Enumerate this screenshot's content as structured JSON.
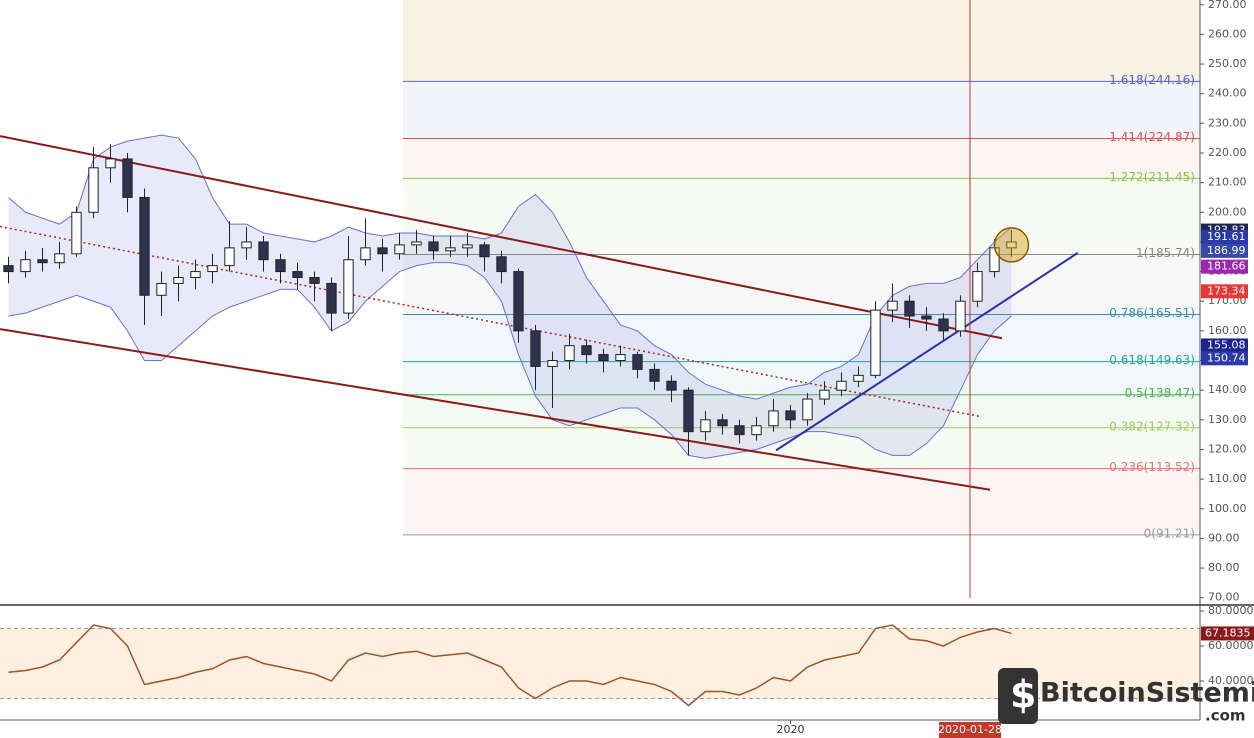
{
  "chart_data": {
    "type": "candlestick",
    "xlim": [
      -0.5,
      70.09
    ],
    "ylim": [
      69.9,
      271.6
    ],
    "yticks": [
      {
        "value": 270,
        "label": "270.00"
      },
      {
        "value": 260,
        "label": "260.00"
      },
      {
        "value": 250,
        "label": "250.00"
      },
      {
        "value": 240,
        "label": "240.00"
      },
      {
        "value": 230,
        "label": "230.00"
      },
      {
        "value": 220,
        "label": "220.00"
      },
      {
        "value": 210,
        "label": "210.00"
      },
      {
        "value": 200,
        "label": "200.00"
      },
      {
        "value": 190,
        "label": "190.00"
      },
      {
        "value": 180,
        "label": "180.00"
      },
      {
        "value": 170,
        "label": "170.00"
      },
      {
        "value": 160,
        "label": "160.00"
      },
      {
        "value": 150,
        "label": "150.00"
      },
      {
        "value": 140,
        "label": "140.00"
      },
      {
        "value": 130,
        "label": "130.00"
      },
      {
        "value": 120,
        "label": "120.00"
      },
      {
        "value": 110,
        "label": "110.00"
      },
      {
        "value": 100,
        "label": "100.00"
      },
      {
        "value": 90,
        "label": "90.00"
      },
      {
        "value": 80,
        "label": "80.00"
      },
      {
        "value": 70,
        "label": "70.00"
      }
    ],
    "xticks": [
      {
        "value": 46,
        "label": "2020"
      }
    ],
    "crosshair": {
      "value": 56.56,
      "label": "2020-01-28",
      "color": "#c0392b"
    },
    "up_color": "#ffffff",
    "down_color": "#2f3350",
    "candles": [
      [
        182,
        185,
        176,
        180
      ],
      [
        180,
        187,
        178,
        184
      ],
      [
        184,
        188,
        180,
        183
      ],
      [
        183,
        190,
        181,
        186
      ],
      [
        186,
        202,
        185,
        200
      ],
      [
        200,
        222,
        198,
        215
      ],
      [
        215,
        223,
        210,
        218
      ],
      [
        218,
        220,
        200,
        205
      ],
      [
        205,
        208,
        162,
        172
      ],
      [
        172,
        180,
        165,
        176
      ],
      [
        176,
        182,
        170,
        178
      ],
      [
        178,
        184,
        174,
        180
      ],
      [
        180,
        186,
        176,
        182
      ],
      [
        182,
        197,
        180,
        188
      ],
      [
        188,
        195,
        184,
        190
      ],
      [
        190,
        192,
        180,
        184
      ],
      [
        184,
        186,
        176,
        180
      ],
      [
        180,
        183,
        174,
        178
      ],
      [
        178,
        180,
        170,
        176
      ],
      [
        176,
        178,
        160,
        166
      ],
      [
        166,
        192,
        164,
        184
      ],
      [
        184,
        198,
        182,
        188
      ],
      [
        188,
        191,
        180,
        186
      ],
      [
        186,
        193,
        184,
        189
      ],
      [
        189,
        194,
        186,
        190
      ],
      [
        190,
        192,
        184,
        187
      ],
      [
        187,
        192,
        185,
        188
      ],
      [
        188,
        193,
        185,
        189
      ],
      [
        189,
        190,
        180,
        185
      ],
      [
        185,
        187,
        176,
        180
      ],
      [
        180,
        181,
        156,
        160
      ],
      [
        160,
        162,
        140,
        148
      ],
      [
        148,
        153,
        134,
        150
      ],
      [
        150,
        159,
        147,
        155
      ],
      [
        155,
        157,
        149,
        152
      ],
      [
        152,
        154,
        146,
        150
      ],
      [
        150,
        155,
        148,
        152
      ],
      [
        152,
        153,
        144,
        147
      ],
      [
        147,
        149,
        140,
        143
      ],
      [
        143,
        145,
        136,
        140
      ],
      [
        140,
        141,
        118,
        126
      ],
      [
        126,
        133,
        123,
        130
      ],
      [
        130,
        132,
        125,
        128
      ],
      [
        128,
        130,
        122,
        125
      ],
      [
        125,
        131,
        123,
        128
      ],
      [
        128,
        137,
        126,
        133
      ],
      [
        133,
        135,
        127,
        130
      ],
      [
        130,
        139,
        128,
        137
      ],
      [
        137,
        143,
        135,
        140
      ],
      [
        140,
        146,
        138,
        143
      ],
      [
        143,
        148,
        141,
        145
      ],
      [
        145,
        170,
        144,
        167
      ],
      [
        167,
        176,
        163,
        170
      ],
      [
        170,
        172,
        161,
        165
      ],
      [
        165,
        168,
        160,
        164
      ],
      [
        164,
        166,
        157,
        160
      ],
      [
        160,
        172,
        158,
        170
      ],
      [
        170,
        183,
        168,
        180
      ],
      [
        180,
        191,
        178,
        188
      ],
      [
        188,
        194,
        185,
        190
      ]
    ],
    "bb_upper": [
      205,
      200,
      198,
      196,
      200,
      218,
      222,
      224,
      225,
      226,
      225,
      218,
      205,
      196,
      196,
      193,
      192,
      191,
      190,
      192,
      195,
      193,
      192,
      193,
      193,
      192,
      192,
      192,
      191,
      193,
      202,
      206,
      200,
      190,
      178,
      170,
      162,
      160,
      155,
      152,
      146,
      142,
      140,
      138,
      137,
      139,
      141,
      142,
      146,
      148,
      152,
      165,
      172,
      175,
      176,
      176,
      178,
      184,
      190,
      195
    ],
    "bb_lower": [
      165,
      166,
      168,
      170,
      172,
      170,
      168,
      160,
      150,
      150,
      155,
      160,
      165,
      168,
      170,
      172,
      174,
      174,
      168,
      160,
      163,
      170,
      175,
      180,
      182,
      183,
      183,
      182,
      178,
      170,
      152,
      138,
      130,
      128,
      130,
      132,
      134,
      134,
      130,
      125,
      118,
      117,
      118,
      119,
      120,
      122,
      124,
      126,
      126,
      125,
      124,
      120,
      118,
      118,
      122,
      128,
      140,
      152,
      160,
      165
    ],
    "band_color": "#6b6fd6",
    "trend_lines": [
      {
        "from": [
          -0.5,
          225.7
        ],
        "to": [
          58.44,
          157.5
        ],
        "color": "#8b1a1a",
        "style": "solid"
      },
      {
        "from": [
          -0.5,
          160.6
        ],
        "to": [
          57.74,
          106.4
        ],
        "color": "#8b1a1a",
        "style": "solid"
      },
      {
        "from": [
          45.15,
          119.7
        ],
        "to": [
          62.9,
          186.3
        ],
        "color": "#2a2fb0",
        "style": "solid"
      },
      {
        "from": [
          -0.5,
          195.2
        ],
        "to": [
          57.26,
          131
        ],
        "color": "#b22222",
        "style": "dotted"
      }
    ],
    "fib_start": 23.2,
    "fib_levels": [
      {
        "value": 244.16,
        "label": "1.618(244.16)",
        "color": "#5b5fc7"
      },
      {
        "value": 224.87,
        "label": "1.414(224.87)",
        "color": "#d9534f"
      },
      {
        "value": 211.45,
        "label": "1.272(211.45)",
        "color": "#8bc34a"
      },
      {
        "value": 185.74,
        "label": "1(185.74)",
        "color": "#888888"
      },
      {
        "value": 165.51,
        "label": "0.786(165.51)",
        "color": "#3a8fb7"
      },
      {
        "value": 149.63,
        "label": "0.618(149.63)",
        "color": "#26a69a"
      },
      {
        "value": 138.47,
        "label": "0.5(138.47)",
        "color": "#4caf50"
      },
      {
        "value": 127.32,
        "label": "0.382(127.32)",
        "color": "#9ccc65"
      },
      {
        "value": 113.52,
        "label": "0.236(113.52)",
        "color": "#e57373"
      },
      {
        "value": 91.21,
        "label": "0(91.21)",
        "color": "#999999"
      }
    ],
    "price_tags": [
      {
        "value": 193.83,
        "label": "193.83",
        "color": "#1c2456"
      },
      {
        "value": 191.61,
        "label": "191.61",
        "color": "#2b3aa8"
      },
      {
        "value": 186.99,
        "label": "186.99",
        "color": "#3949ab"
      },
      {
        "value": 181.66,
        "label": "181.66",
        "color": "#9c27b0"
      },
      {
        "value": 173.34,
        "label": "173.34",
        "color": "#e53935"
      },
      {
        "value": 155.08,
        "label": "155.08",
        "color": "#1c2490"
      },
      {
        "value": 150.74,
        "label": "150.74",
        "color": "#2b3aa8"
      }
    ],
    "highlight": {
      "x": 59,
      "price": 189
    },
    "rsi": {
      "ylim": [
        17.7,
        82.3
      ],
      "yticks": [
        {
          "value": 80,
          "label": "80.0000"
        },
        {
          "value": 60,
          "label": "60.0000"
        },
        {
          "value": 40,
          "label": "40.0000"
        }
      ],
      "bands": [
        30,
        70
      ],
      "color": "#a0522d",
      "values": [
        45,
        46,
        48,
        52,
        62,
        72,
        70,
        60,
        38,
        40,
        42,
        45,
        47,
        52,
        54,
        50,
        48,
        46,
        44,
        40,
        52,
        56,
        54,
        56,
        57,
        54,
        55,
        56,
        52,
        48,
        36,
        30,
        36,
        40,
        40,
        38,
        42,
        40,
        38,
        34,
        26,
        34,
        34,
        32,
        36,
        42,
        40,
        48,
        52,
        54,
        56,
        70,
        72,
        64,
        63,
        60,
        65,
        68,
        70,
        67.1835
      ],
      "tag": {
        "value": 67.1835,
        "label": "67.1835",
        "color": "#8b1a1a"
      }
    },
    "watermark": {
      "name": "BitcoinSistemi",
      "suffix": ".com"
    }
  }
}
